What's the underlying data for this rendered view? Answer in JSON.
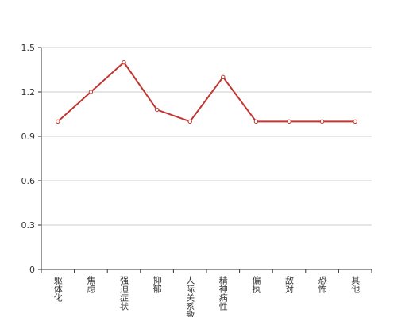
{
  "chart_data": {
    "type": "line",
    "categories": [
      "躯体化",
      "焦虑",
      "强迫症状",
      "抑郁",
      "人际关系敏感",
      "精神病性",
      "偏执",
      "敌对",
      "恐怖",
      "其他"
    ],
    "values": [
      1.0,
      1.2,
      1.4,
      1.08,
      1.0,
      1.3,
      1.0,
      1.0,
      1.0,
      1.0
    ],
    "color": "#c23531",
    "ylim": [
      0,
      1.5
    ],
    "yticks": [
      0,
      0.3,
      0.6,
      0.9,
      1.2,
      1.5
    ],
    "grid": true
  }
}
